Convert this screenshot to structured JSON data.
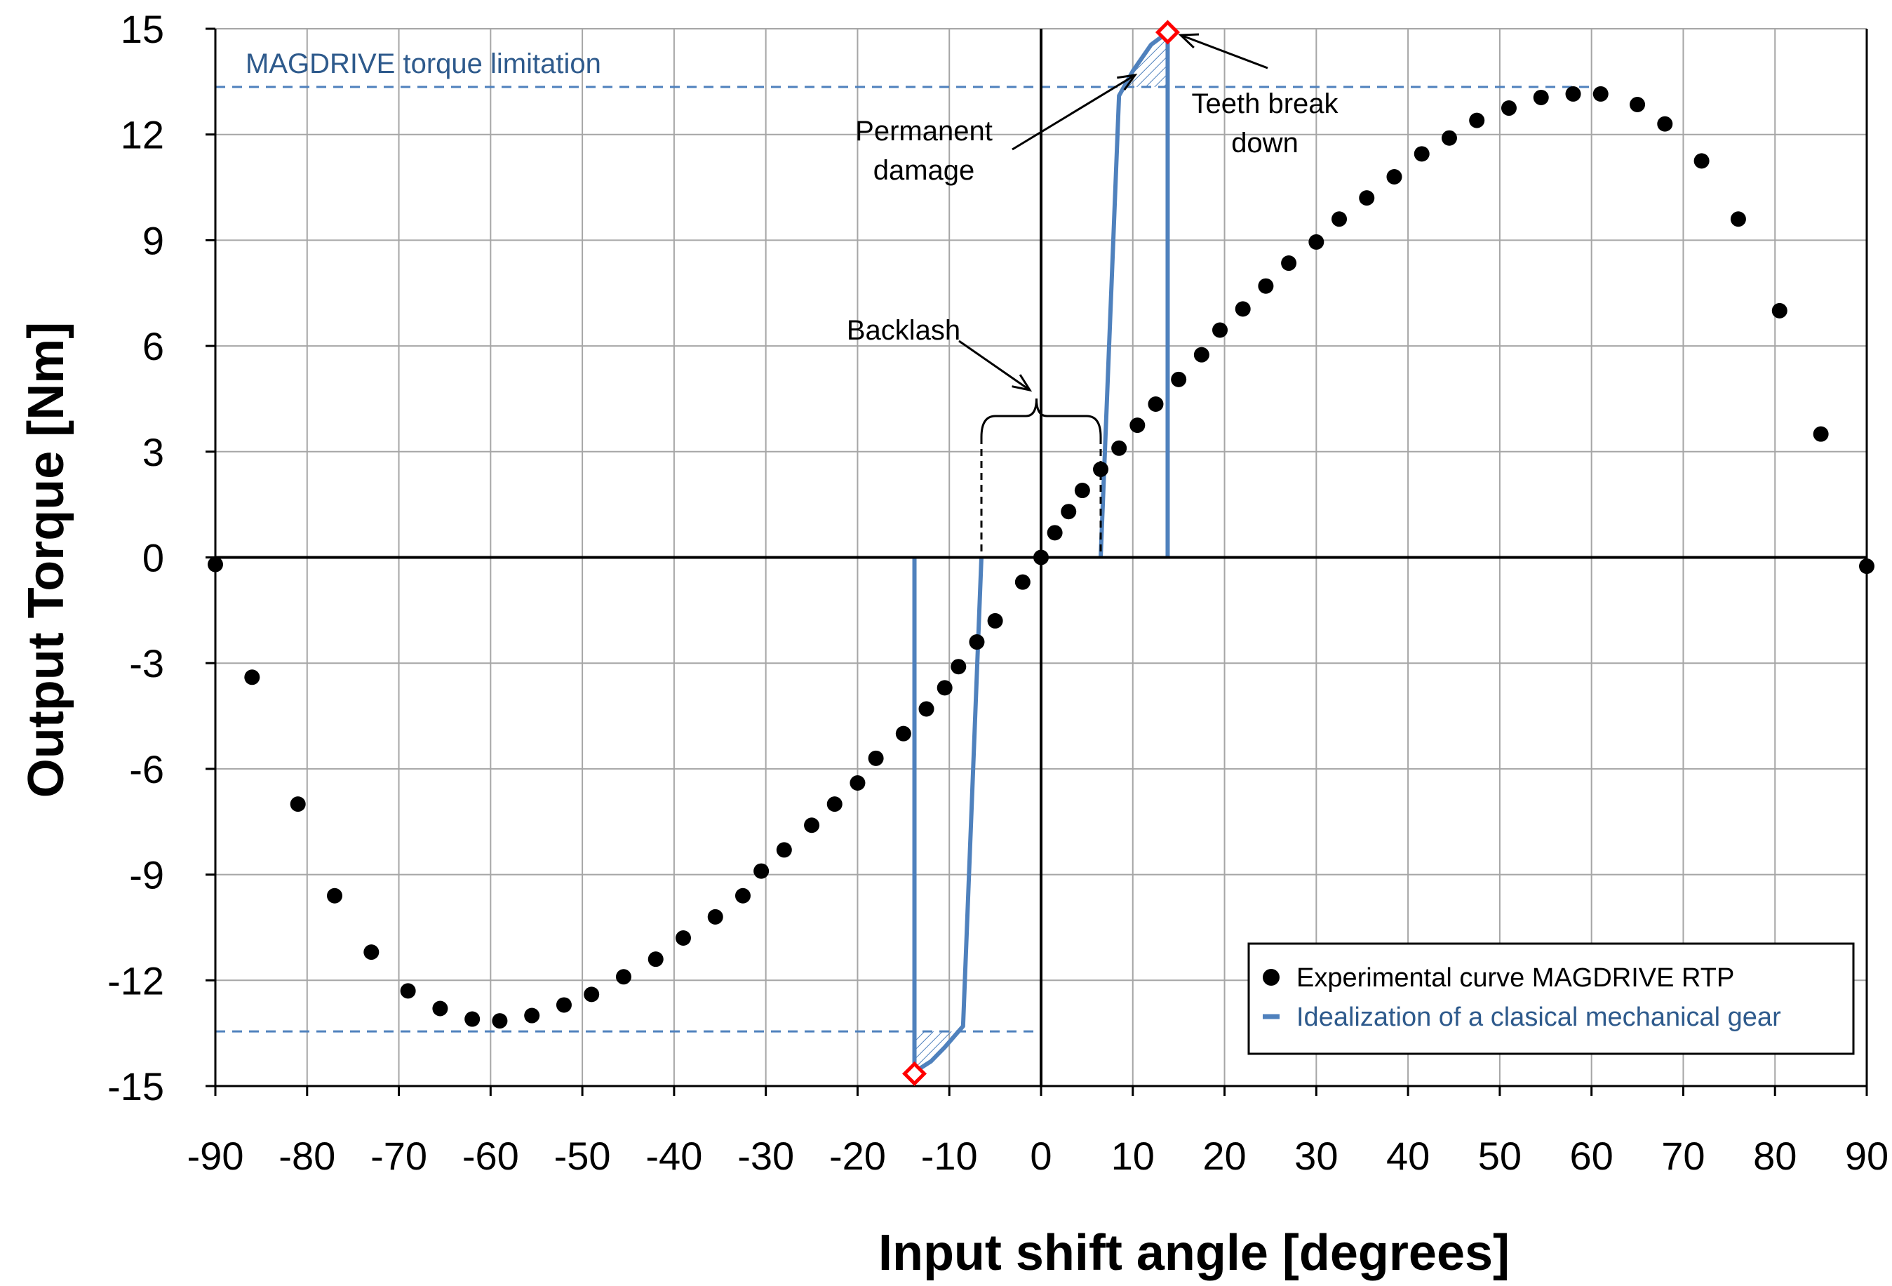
{
  "chart_data": {
    "type": "scatter",
    "title": "",
    "xlabel": "Input shift angle [degrees]",
    "ylabel": "Output Torque [Nm]",
    "xlim": [
      -90,
      90
    ],
    "ylim": [
      -15,
      15
    ],
    "x_ticks": [
      "-90",
      "-80",
      "-70",
      "-60",
      "-50",
      "-40",
      "-30",
      "-20",
      "-10",
      "0",
      "10",
      "20",
      "30",
      "40",
      "50",
      "60",
      "70",
      "80",
      "90"
    ],
    "y_ticks": [
      "15",
      "12",
      "9",
      "6",
      "3",
      "0",
      "-3",
      "-6",
      "-9",
      "-12",
      "-15"
    ],
    "grid": true,
    "legend_position": "bottom-right",
    "series": [
      {
        "name": "Experimental curve MAGDRIVE RTP",
        "marker": "circle",
        "color": "#000000",
        "points": [
          [
            -90,
            -0.2
          ],
          [
            -86,
            -3.4
          ],
          [
            -81,
            -7.0
          ],
          [
            -77,
            -9.6
          ],
          [
            -73,
            -11.2
          ],
          [
            -69,
            -12.3
          ],
          [
            -65.5,
            -12.8
          ],
          [
            -62,
            -13.1
          ],
          [
            -59,
            -13.15
          ],
          [
            -55.5,
            -13.0
          ],
          [
            -52,
            -12.7
          ],
          [
            -49,
            -12.4
          ],
          [
            -45.5,
            -11.9
          ],
          [
            -42,
            -11.4
          ],
          [
            -39,
            -10.8
          ],
          [
            -35.5,
            -10.2
          ],
          [
            -32.5,
            -9.6
          ],
          [
            -30.5,
            -8.9
          ],
          [
            -28,
            -8.3
          ],
          [
            -25,
            -7.6
          ],
          [
            -22.5,
            -7.0
          ],
          [
            -20,
            -6.4
          ],
          [
            -18,
            -5.7
          ],
          [
            -15,
            -5.0
          ],
          [
            -12.5,
            -4.3
          ],
          [
            -10.5,
            -3.7
          ],
          [
            -9,
            -3.1
          ],
          [
            -7,
            -2.4
          ],
          [
            -5,
            -1.8
          ],
          [
            -2,
            -0.7
          ],
          [
            0,
            0
          ],
          [
            1.5,
            0.7
          ],
          [
            3,
            1.3
          ],
          [
            4.5,
            1.9
          ],
          [
            6.5,
            2.5
          ],
          [
            8.5,
            3.1
          ],
          [
            10.5,
            3.75
          ],
          [
            12.5,
            4.35
          ],
          [
            15,
            5.05
          ],
          [
            17.5,
            5.75
          ],
          [
            19.5,
            6.45
          ],
          [
            22,
            7.05
          ],
          [
            24.5,
            7.7
          ],
          [
            27,
            8.35
          ],
          [
            30,
            8.95
          ],
          [
            32.5,
            9.6
          ],
          [
            35.5,
            10.2
          ],
          [
            38.5,
            10.8
          ],
          [
            41.5,
            11.45
          ],
          [
            44.5,
            11.9
          ],
          [
            47.5,
            12.4
          ],
          [
            51,
            12.75
          ],
          [
            54.5,
            13.05
          ],
          [
            58,
            13.15
          ],
          [
            61,
            13.15
          ],
          [
            65,
            12.85
          ],
          [
            68,
            12.3
          ],
          [
            72,
            11.25
          ],
          [
            76,
            9.6
          ],
          [
            80.5,
            7.0
          ],
          [
            85,
            3.5
          ],
          [
            90,
            -0.25
          ]
        ]
      },
      {
        "name": "Idealization of a clasical mechanical gear",
        "color": "#4f81bd",
        "segments": [
          [
            [
              6.5,
              0
            ],
            [
              8.5,
              13.1
            ],
            [
              10,
              13.8
            ],
            [
              12,
              14.55
            ],
            [
              13.8,
              14.9
            ],
            [
              13.8,
              0
            ]
          ],
          [
            [
              -13.8,
              0
            ],
            [
              -13.8,
              -14.6
            ],
            [
              -12,
              -14.3
            ],
            [
              -10.5,
              -13.9
            ],
            [
              -8.5,
              -13.3
            ],
            [
              -6.5,
              0
            ]
          ]
        ],
        "break_points": [
          [
            13.8,
            14.9
          ],
          [
            -13.8,
            -14.65
          ]
        ]
      }
    ],
    "limit_lines": {
      "upper": {
        "y": 13.35,
        "x_range": [
          -90,
          60
        ]
      },
      "lower": {
        "y": -13.45,
        "x_range": [
          -90,
          0
        ]
      },
      "label": "MAGDRIVE torque limitation"
    },
    "annotations": {
      "teeth_break": [
        "Teeth break",
        "down"
      ],
      "permanent_damage": [
        "Permanent",
        "damage"
      ],
      "backlash": "Backlash",
      "backlash_range": [
        -6.5,
        6.5
      ]
    }
  },
  "colors": {
    "grid": "#a6a6a6",
    "ideal_line": "#4f81bd",
    "limit_line": "#4f81bd",
    "marker_outline": "#ff0000",
    "dots": "#000000"
  }
}
